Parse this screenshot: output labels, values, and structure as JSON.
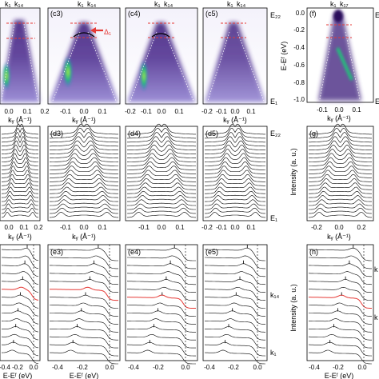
{
  "figure": {
    "row1": {
      "panels": [
        {
          "label": "",
          "ticks": [
            "0.0",
            "0.1",
            "0.2"
          ],
          "marks": [
            "k₁",
            "k₁₄"
          ]
        },
        {
          "label": "(c3)",
          "ticks": [
            "-0.1",
            "0.0",
            "0.1"
          ],
          "marks": [
            "k₁",
            "k₁₄"
          ],
          "annotation": "Δ₁"
        },
        {
          "label": "(c4)",
          "ticks": [
            "-0.2",
            "-0.1",
            "0.0",
            "0.1"
          ],
          "marks": [
            "k₁",
            "k₁₄"
          ]
        },
        {
          "label": "(c5)",
          "ticks": [
            "-0.2",
            "-0.1",
            "0.0",
            "0.1"
          ],
          "marks": [
            "k₁",
            "k₁₄"
          ]
        },
        {
          "label": "(f)",
          "ticks": [
            "-0.1",
            "0.0",
            "0.1"
          ],
          "marks": [
            "k₁",
            "k₁₇"
          ]
        }
      ],
      "xlabel": "kᵧ (Å⁻¹)",
      "right_top": "E₂₂",
      "right_bottom": "E₁",
      "f_ylabel": "E-Eᶠ (eV)",
      "f_yticks": [
        "0.0",
        "-0.2",
        "-0.4",
        "-0.6",
        "-0.8",
        "-1.0"
      ]
    },
    "row2": {
      "panels": [
        {
          "label": "",
          "ticks": [
            "0.0",
            "0.1",
            "0.2"
          ]
        },
        {
          "label": "(d3)",
          "ticks": [
            "-0.1",
            "0.0",
            "0.1"
          ]
        },
        {
          "label": "(d4)",
          "ticks": [
            "-0.1",
            "0.0",
            "0.1"
          ]
        },
        {
          "label": "(d5)",
          "ticks": [
            "-0.2",
            "-0.1",
            "0.0",
            "0.1"
          ]
        },
        {
          "label": "(g)",
          "ticks": [
            "-0.2",
            "0.0",
            "0.2"
          ]
        }
      ],
      "xlabel": "kᵧ (Å⁻¹)",
      "right_top": "E₂₂",
      "right_bottom": "E₁",
      "g_ylabel": "Intensity (a. u.)"
    },
    "row3": {
      "panels": [
        {
          "label": "",
          "ticks": [
            "-0.4",
            "-0.2",
            "0.0"
          ]
        },
        {
          "label": "(e3)",
          "ticks": [
            "-0.4",
            "-0.2",
            "0.0"
          ]
        },
        {
          "label": "(e4)",
          "ticks": [
            "-0.4",
            "-0.2",
            "0.0"
          ]
        },
        {
          "label": "(e5)",
          "ticks": [
            "-0.4",
            "-0.2",
            "0.0"
          ]
        },
        {
          "label": "(h)",
          "ticks": [
            "-0.4",
            "-0.2",
            "0.0"
          ]
        }
      ],
      "xlabel": "E-Eᶠ (eV)",
      "right_top": "k₁₄",
      "right_bottom": "k₁",
      "h_ylabel": "Intensity (a. u.)",
      "h_right": "k"
    }
  },
  "colors": {
    "spectrum_dark": "#2a0a5c",
    "spectrum_mid": "#8f7fd1",
    "spectrum_light": "#e8e4f7",
    "hot": "#2ecc71",
    "highlight": "#e53935",
    "marker": "#e53935"
  }
}
